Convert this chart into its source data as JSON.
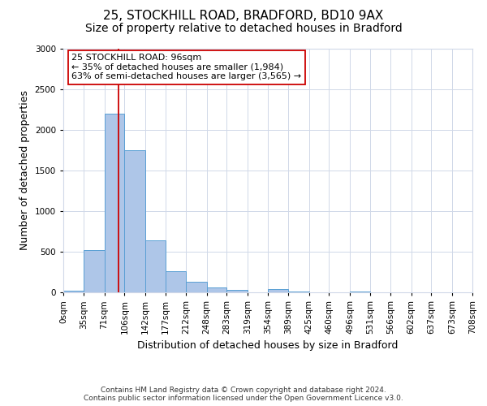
{
  "title1": "25, STOCKHILL ROAD, BRADFORD, BD10 9AX",
  "title2": "Size of property relative to detached houses in Bradford",
  "xlabel": "Distribution of detached houses by size in Bradford",
  "ylabel": "Number of detached properties",
  "bar_edges": [
    0,
    35,
    71,
    106,
    142,
    177,
    212,
    248,
    283,
    319,
    354,
    389,
    425,
    460,
    496,
    531,
    566,
    602,
    637,
    673,
    708
  ],
  "bar_heights": [
    20,
    520,
    2200,
    1750,
    640,
    265,
    130,
    65,
    30,
    0,
    40,
    10,
    0,
    0,
    10,
    0,
    0,
    0,
    0,
    0
  ],
  "bar_color": "#aec6e8",
  "bar_edge_color": "#5a9fd4",
  "vline_x": 96,
  "vline_color": "#cc0000",
  "annotation_title": "25 STOCKHILL ROAD: 96sqm",
  "annotation_line1": "← 35% of detached houses are smaller (1,984)",
  "annotation_line2": "63% of semi-detached houses are larger (3,565) →",
  "annotation_box_color": "#ffffff",
  "annotation_border_color": "#cc0000",
  "ylim": [
    0,
    3000
  ],
  "yticks": [
    0,
    500,
    1000,
    1500,
    2000,
    2500,
    3000
  ],
  "xtick_labels": [
    "0sqm",
    "35sqm",
    "71sqm",
    "106sqm",
    "142sqm",
    "177sqm",
    "212sqm",
    "248sqm",
    "283sqm",
    "319sqm",
    "354sqm",
    "389sqm",
    "425sqm",
    "460sqm",
    "496sqm",
    "531sqm",
    "566sqm",
    "602sqm",
    "637sqm",
    "673sqm",
    "708sqm"
  ],
  "footer1": "Contains HM Land Registry data © Crown copyright and database right 2024.",
  "footer2": "Contains public sector information licensed under the Open Government Licence v3.0.",
  "bg_color": "#ffffff",
  "grid_color": "#d0d8e8",
  "title1_fontsize": 11,
  "title2_fontsize": 10,
  "axis_label_fontsize": 9,
  "tick_fontsize": 7.5,
  "footer_fontsize": 6.5
}
